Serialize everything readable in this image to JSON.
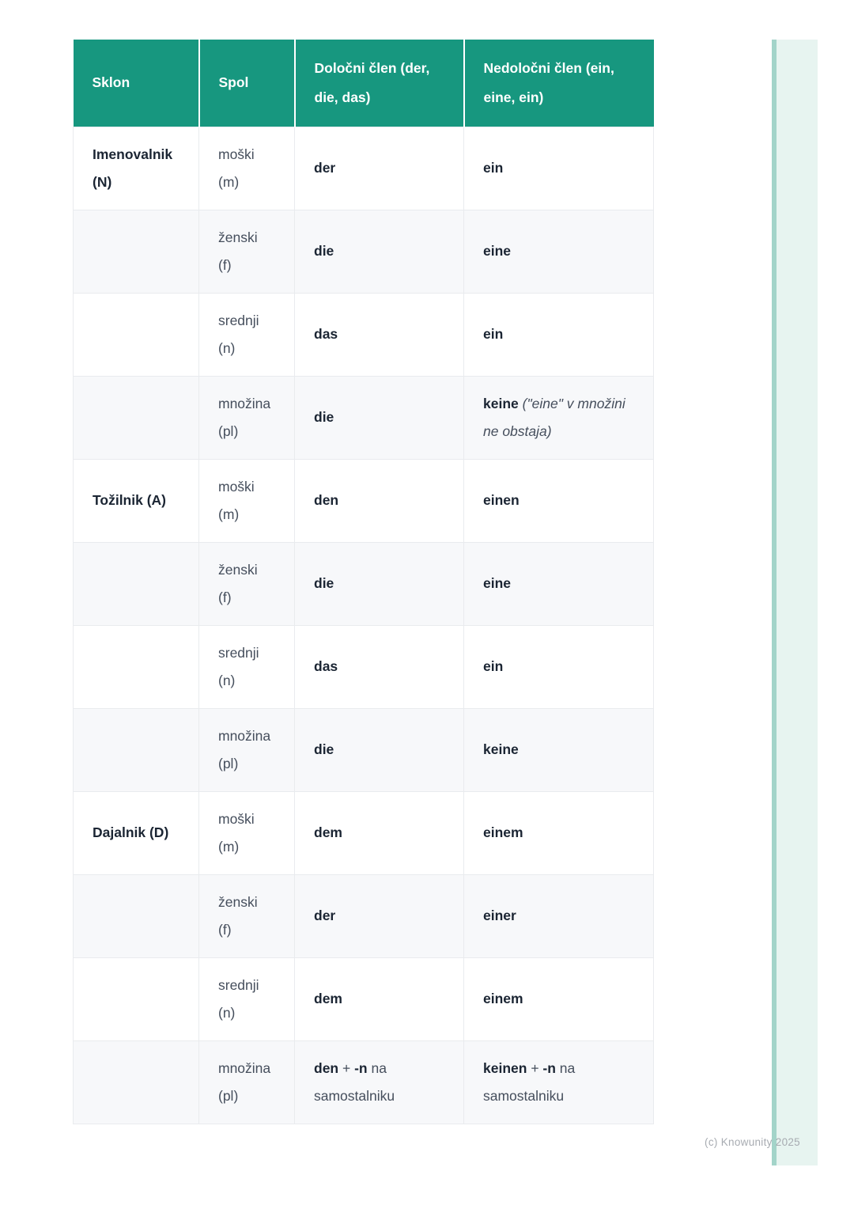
{
  "page": {
    "background": "#ffffff",
    "footer": "(c) Knowunity 2025",
    "accent_strip_fill": "#e7f4f0",
    "accent_strip_border": "#a3d4c9"
  },
  "table": {
    "header_bg": "#17977f",
    "header_text_color": "#ffffff",
    "alt_row_bg": "#f7f8fa",
    "border_color": "#e9ebee",
    "columns": {
      "sklon": "Sklon",
      "spol": "Spol",
      "dolocni": "Določni člen (der, die, das)",
      "nedolocni": "Nedoločni člen (ein, eine, ein)"
    },
    "rows": [
      {
        "sklon": "Imenovalnik (N)",
        "spol1": "moški",
        "spol2": "(m)",
        "det": "der",
        "indef": "ein"
      },
      {
        "sklon": "",
        "spol1": "ženski",
        "spol2": "(f)",
        "det": "die",
        "indef": "eine"
      },
      {
        "sklon": "",
        "spol1": "srednji",
        "spol2": "(n)",
        "det": "das",
        "indef": "ein"
      },
      {
        "sklon": "",
        "spol1": "množina",
        "spol2": "(pl)",
        "det": "die",
        "indef_bold": "keine",
        "indef_note": " (\"eine\" v množini ne obstaja)"
      },
      {
        "sklon": "Tožilnik (A)",
        "spol1": "moški",
        "spol2": "(m)",
        "det": "den",
        "indef": "einen"
      },
      {
        "sklon": "",
        "spol1": "ženski",
        "spol2": "(f)",
        "det": "die",
        "indef": "eine"
      },
      {
        "sklon": "",
        "spol1": "srednji",
        "spol2": "(n)",
        "det": "das",
        "indef": "ein"
      },
      {
        "sklon": "",
        "spol1": "množina",
        "spol2": "(pl)",
        "det": "die",
        "indef": "keine"
      },
      {
        "sklon": "Dajalnik (D)",
        "spol1": "moški",
        "spol2": "(m)",
        "det": "dem",
        "indef": "einem"
      },
      {
        "sklon": "",
        "spol1": "ženski",
        "spol2": "(f)",
        "det": "der",
        "indef": "einer"
      },
      {
        "sklon": "",
        "spol1": "srednji",
        "spol2": "(n)",
        "det": "dem",
        "indef": "einem"
      },
      {
        "sklon": "",
        "spol1": "množina",
        "spol2": "(pl)",
        "det_b1": "den",
        "det_m1": " + ",
        "det_b2": "-n",
        "det_t": " na samostalniku",
        "indef_b1": "keinen",
        "indef_m1": " + ",
        "indef_b2": "-n",
        "indef_t": " na samostalniku"
      }
    ]
  }
}
